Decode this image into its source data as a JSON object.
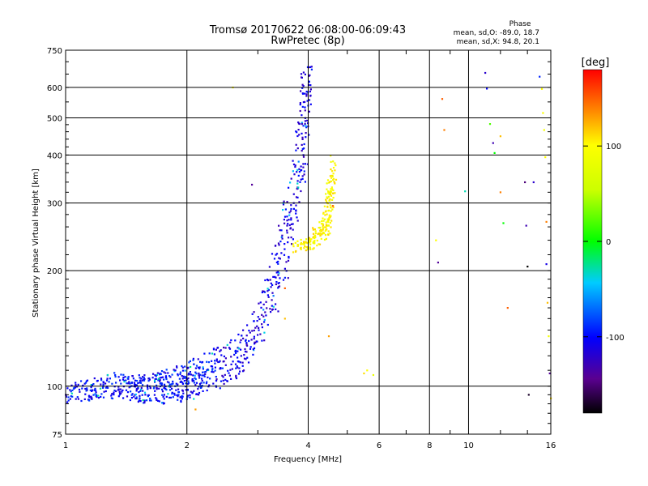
{
  "chart_data": {
    "type": "scatter",
    "title": "Tromsø 20170622 06:08:00-06:09:43",
    "subtitle": "RwPretec (8p)",
    "xlabel": "Frequency [MHz]",
    "ylabel": "Stationary phase Virtual Height [km]",
    "x_scale": "log",
    "y_scale": "log",
    "xlim": [
      1,
      16
    ],
    "ylim": [
      75,
      750
    ],
    "x_ticks": [
      1,
      2,
      4,
      6,
      8,
      10,
      16
    ],
    "x_tick_labels": [
      "1",
      "2",
      "4",
      "6",
      "8",
      "10",
      "16"
    ],
    "y_ticks": [
      75,
      100,
      200,
      300,
      400,
      500,
      600,
      750
    ],
    "y_tick_labels": [
      "75",
      "100",
      "200",
      "300",
      "400",
      "500",
      "600",
      "750"
    ],
    "grid": true,
    "stats": {
      "header": "Phase",
      "line_o": "mean, sd,O: -89.0, 18.7",
      "line_x": "mean, sd,X:  94.8, 20.1"
    },
    "colorbar": {
      "label": "[deg]",
      "range": [
        -180,
        180
      ],
      "ticks": [
        100,
        0,
        -100
      ],
      "tick_labels": [
        "100",
        "0",
        "-100"
      ]
    },
    "o_trace": [
      [
        1.0,
        95
      ],
      [
        1.05,
        96
      ],
      [
        1.1,
        98
      ],
      [
        1.15,
        97
      ],
      [
        1.2,
        99
      ],
      [
        1.25,
        98
      ],
      [
        1.3,
        100
      ],
      [
        1.35,
        101
      ],
      [
        1.4,
        99
      ],
      [
        1.45,
        100
      ],
      [
        1.5,
        98
      ],
      [
        1.55,
        97
      ],
      [
        1.6,
        99
      ],
      [
        1.65,
        100
      ],
      [
        1.7,
        98
      ],
      [
        1.75,
        99
      ],
      [
        1.8,
        100
      ],
      [
        1.85,
        101
      ],
      [
        1.9,
        100
      ],
      [
        1.95,
        102
      ],
      [
        2.0,
        103
      ],
      [
        2.05,
        105
      ],
      [
        2.1,
        107
      ],
      [
        2.15,
        106
      ],
      [
        2.2,
        108
      ],
      [
        2.3,
        110
      ],
      [
        2.4,
        112
      ],
      [
        2.5,
        114
      ],
      [
        2.6,
        116
      ],
      [
        2.7,
        120
      ],
      [
        2.8,
        126
      ],
      [
        2.9,
        133
      ],
      [
        3.0,
        145
      ],
      [
        3.1,
        158
      ],
      [
        3.2,
        172
      ],
      [
        3.3,
        190
      ],
      [
        3.4,
        210
      ],
      [
        3.5,
        235
      ],
      [
        3.6,
        265
      ],
      [
        3.7,
        305
      ],
      [
        3.8,
        360
      ],
      [
        3.85,
        420
      ],
      [
        3.9,
        500
      ],
      [
        3.95,
        580
      ],
      [
        4.0,
        640
      ]
    ],
    "x_trace": [
      [
        3.8,
        228
      ],
      [
        3.9,
        232
      ],
      [
        4.0,
        236
      ],
      [
        4.1,
        240
      ],
      [
        4.2,
        245
      ],
      [
        4.3,
        252
      ],
      [
        4.4,
        262
      ],
      [
        4.45,
        275
      ],
      [
        4.5,
        295
      ],
      [
        4.55,
        320
      ],
      [
        4.6,
        350
      ],
      [
        4.62,
        380
      ]
    ],
    "scatter_points": [
      [
        8.3,
        240,
        100
      ],
      [
        8.4,
        210,
        -140
      ],
      [
        8.6,
        560,
        150
      ],
      [
        8.7,
        465,
        140
      ],
      [
        9.8,
        322,
        -30
      ],
      [
        11.0,
        655,
        -120
      ],
      [
        11.1,
        596,
        -100
      ],
      [
        11.3,
        482,
        20
      ],
      [
        11.5,
        430,
        -130
      ],
      [
        11.6,
        405,
        0
      ],
      [
        12.0,
        448,
        120
      ],
      [
        12.0,
        320,
        140
      ],
      [
        12.2,
        266,
        0
      ],
      [
        12.5,
        160,
        150
      ],
      [
        13.8,
        340,
        -150
      ],
      [
        13.9,
        262,
        -130
      ],
      [
        14.0,
        205,
        -180
      ],
      [
        14.1,
        95,
        -170
      ],
      [
        14.5,
        340,
        -120
      ],
      [
        15.0,
        640,
        -90
      ],
      [
        15.2,
        595,
        100
      ],
      [
        15.3,
        515,
        95
      ],
      [
        15.4,
        465,
        90
      ],
      [
        15.5,
        395,
        100
      ],
      [
        15.6,
        268,
        140
      ],
      [
        15.6,
        208,
        -110
      ],
      [
        15.7,
        165,
        120
      ],
      [
        15.8,
        135,
        90
      ],
      [
        15.9,
        108,
        -140
      ],
      [
        16.0,
        93,
        110
      ],
      [
        5.5,
        108,
        110
      ],
      [
        5.6,
        110,
        100
      ],
      [
        5.8,
        107,
        80
      ],
      [
        2.1,
        87,
        130
      ],
      [
        2.6,
        600,
        100
      ],
      [
        2.9,
        335,
        -140
      ],
      [
        3.5,
        180,
        150
      ],
      [
        3.5,
        150,
        120
      ],
      [
        4.5,
        135,
        130
      ],
      [
        4.6,
        295,
        150
      ]
    ]
  }
}
